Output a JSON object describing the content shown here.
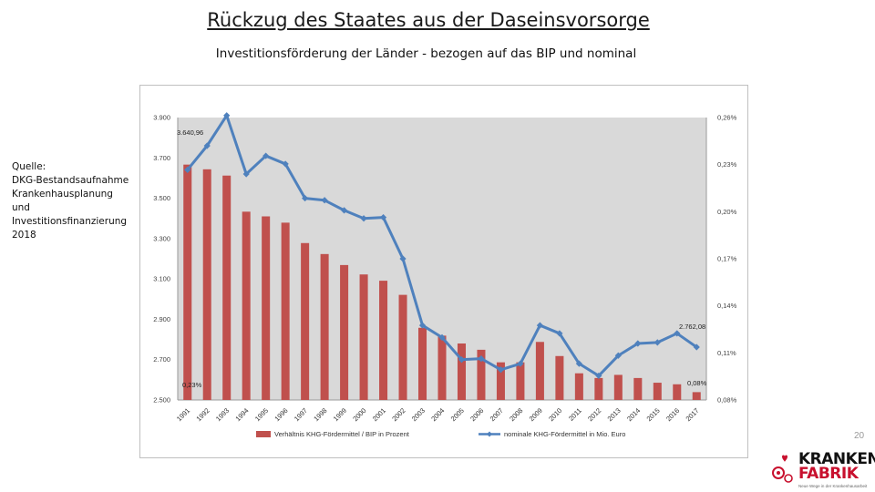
{
  "title": "Rückzug des Staates aus der Daseinsvorsorge",
  "subtitle": "Investitionsförderung der Länder - bezogen auf das BIP und nominal",
  "source_lines": [
    "Quelle:",
    "DKG-Bestandsaufnahme",
    "Krankenhausplanung",
    "und",
    "Investitionsfinanzierung",
    "2018"
  ],
  "page_number": "20",
  "logo": {
    "line1": "KRANKEN",
    "line2": "FABRIK",
    "tagline": "Neue Wege in der Krankenhausarbeit",
    "brand_color": "#c8102e"
  },
  "chart_data": {
    "type": "bar",
    "categories": [
      "1991",
      "1992",
      "1993",
      "1994",
      "1995",
      "1996",
      "1997",
      "1998",
      "1999",
      "2000",
      "2001",
      "2002",
      "2003",
      "2004",
      "2005",
      "2006",
      "2007",
      "2008",
      "2009",
      "2010",
      "2011",
      "2012",
      "2013",
      "2014",
      "2015",
      "2016",
      "2017"
    ],
    "left_axis": {
      "ticks": [
        "2.500",
        "2.700",
        "2.900",
        "3.100",
        "3.300",
        "3.500",
        "3.700",
        "3.900"
      ],
      "ylim": [
        2500,
        3900
      ]
    },
    "right_axis": {
      "ticks": [
        "0,08%",
        "0,11%",
        "0,14%",
        "0,17%",
        "0,20%",
        "0,23%",
        "0,26%"
      ],
      "ylim": [
        0.08,
        0.26
      ]
    },
    "series": [
      {
        "name": "Verhältnis KHG-Fördermittel / BIP in Prozent",
        "axis": "right",
        "kind": "bar",
        "color": "#c0504d",
        "values": [
          0.23,
          0.227,
          0.223,
          0.2,
          0.197,
          0.193,
          0.18,
          0.173,
          0.166,
          0.16,
          0.156,
          0.147,
          0.126,
          0.121,
          0.116,
          0.112,
          0.104,
          0.104,
          0.117,
          0.108,
          0.097,
          0.094,
          0.096,
          0.094,
          0.091,
          0.09,
          0.085
        ]
      },
      {
        "name": "nominale KHG-Fördermittel in Mio. Euro",
        "axis": "left",
        "kind": "line",
        "color": "#4f81bd",
        "values": [
          3640.96,
          3760,
          3910,
          3620,
          3710,
          3670,
          3500,
          3490,
          3440,
          3400,
          3405,
          3200,
          2870,
          2810,
          2700,
          2705,
          2650,
          2680,
          2870,
          2830,
          2680,
          2620,
          2720,
          2780,
          2785,
          2830,
          2762.08
        ]
      }
    ],
    "annotations": [
      "3.640,96",
      "2.762,08",
      "0,23%",
      "0,08%"
    ],
    "legend_position": "bottom",
    "grid": false,
    "background_color": "#d9d9d9"
  }
}
